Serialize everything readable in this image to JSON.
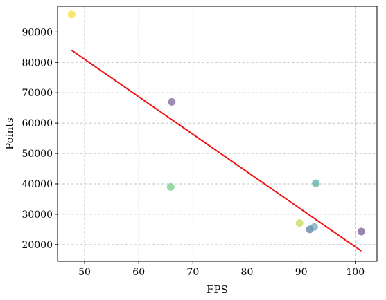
{
  "chart_data": {
    "type": "scatter",
    "title": "",
    "xlabel": "FPS",
    "ylabel": "Points",
    "xlim": [
      45,
      104
    ],
    "ylim": [
      14500,
      98500
    ],
    "xticks": [
      50,
      60,
      70,
      80,
      90,
      100
    ],
    "yticks": [
      20000,
      30000,
      40000,
      50000,
      60000,
      70000,
      80000,
      90000
    ],
    "grid": true,
    "points": [
      {
        "x": 47.6,
        "y": 95800,
        "color": "#f2e35c"
      },
      {
        "x": 66.1,
        "y": 67000,
        "color": "#8e78a6"
      },
      {
        "x": 65.9,
        "y": 39000,
        "color": "#86d49a"
      },
      {
        "x": 92.7,
        "y": 40200,
        "color": "#6fb8ad"
      },
      {
        "x": 89.7,
        "y": 27100,
        "color": "#c8e06a"
      },
      {
        "x": 92.4,
        "y": 25800,
        "color": "#7fb6c4"
      },
      {
        "x": 91.6,
        "y": 25000,
        "color": "#6d8fb0"
      },
      {
        "x": 101.1,
        "y": 24300,
        "color": "#8a6da5"
      }
    ],
    "trend_line": {
      "x": [
        47.6,
        101.1
      ],
      "y": [
        84000,
        17900
      ],
      "color": "#ee1111"
    }
  }
}
